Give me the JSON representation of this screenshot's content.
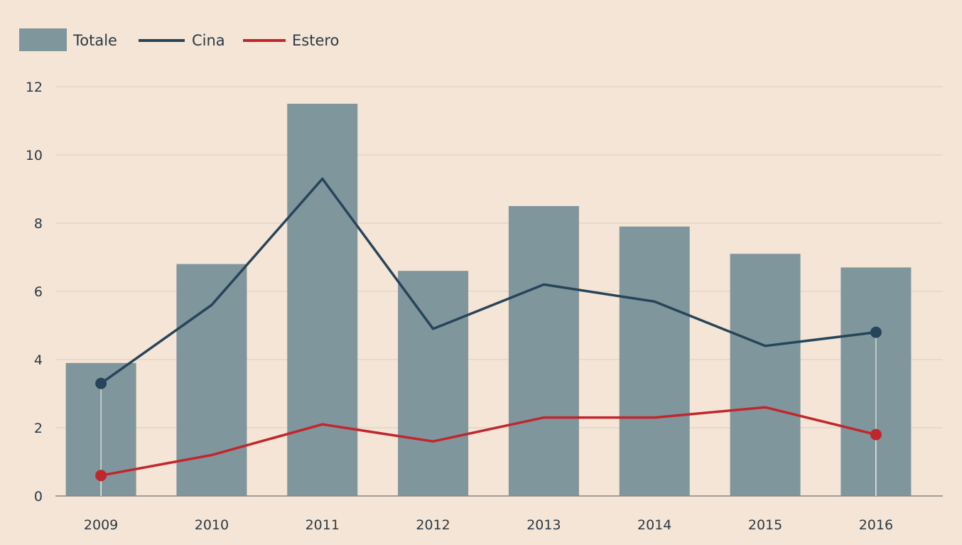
{
  "chart_data": {
    "type": "bar",
    "title": "",
    "xlabel": "",
    "ylabel": "",
    "categories": [
      "2009",
      "2010",
      "2011",
      "2012",
      "2013",
      "2014",
      "2015",
      "2016"
    ],
    "ylim": [
      0,
      12
    ],
    "yticks": [
      0,
      2,
      4,
      6,
      8,
      10,
      12
    ],
    "grid": true,
    "legend_position": "top-left",
    "series": [
      {
        "name": "Totale",
        "kind": "bar",
        "color": "#7f969c",
        "values": [
          3.9,
          6.8,
          11.5,
          6.6,
          8.5,
          7.9,
          7.1,
          6.7
        ]
      },
      {
        "name": "Cina",
        "kind": "line",
        "color": "#27455a",
        "values": [
          3.3,
          5.6,
          9.3,
          4.9,
          6.2,
          5.7,
          4.4,
          4.8
        ]
      },
      {
        "name": "Estero",
        "kind": "line",
        "color": "#c0272d",
        "values": [
          0.6,
          1.2,
          2.1,
          1.6,
          2.3,
          2.3,
          2.6,
          1.8
        ]
      }
    ]
  }
}
